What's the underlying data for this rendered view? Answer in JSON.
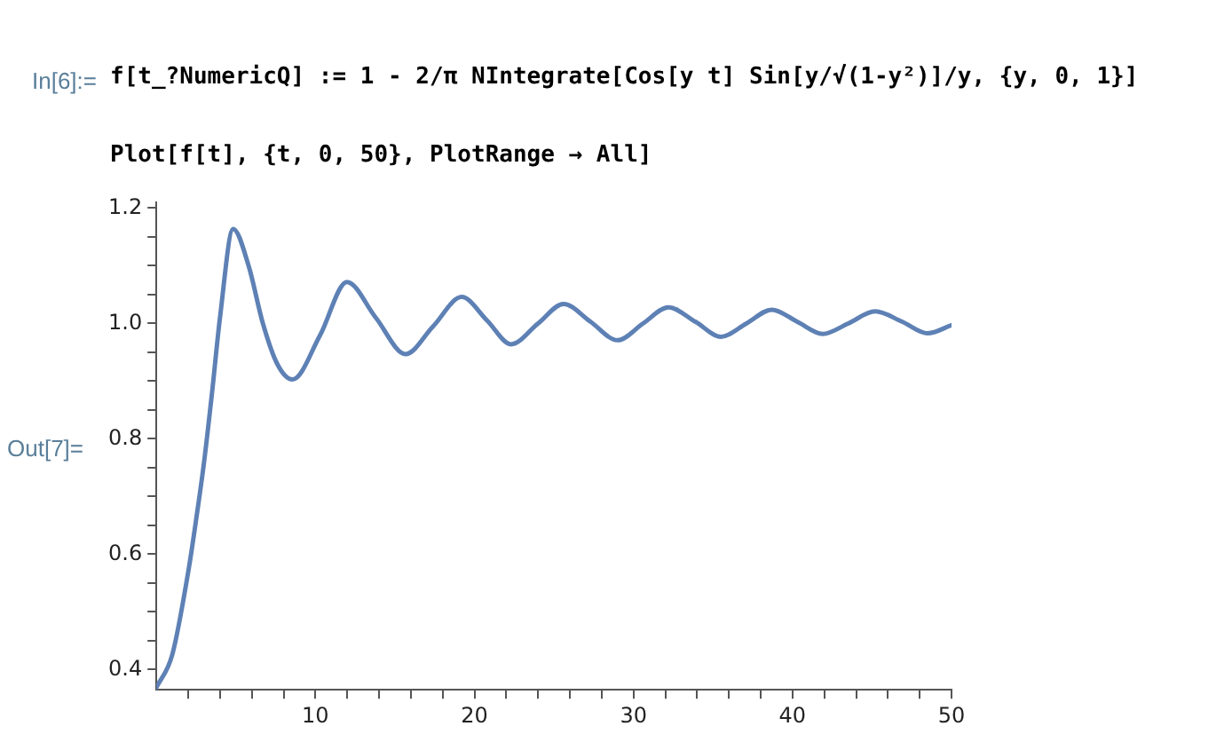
{
  "chart_data": {
    "type": "line",
    "annotations": [
      "In[6]:=",
      "f[t_?NumericQ] := 1 - 2/π NIntegrate[Cos[y t] Sin[y/√(1-y²)]/y, {y, 0, 1}]",
      "Plot[f[t], {t, 0, 50}, PlotRange → All]",
      "Out[7]="
    ],
    "x": [
      0,
      1,
      2,
      2.5,
      3,
      3.5,
      4,
      4.83,
      5.8,
      6.7,
      7.6,
      8.56,
      10.3,
      11.98,
      13.8,
      15.67,
      17.4,
      19.2,
      20.8,
      22.3,
      24,
      25.6,
      27.3,
      29,
      30.6,
      32.2,
      33.9,
      35.5,
      37.1,
      38.7,
      40.3,
      41.9,
      43.5,
      45.2,
      46.9,
      48.5,
      50
    ],
    "series": [
      {
        "color": "#5e81b5",
        "values": [
          0.369,
          0.426,
          0.569,
          0.66,
          0.76,
          0.88,
          1.01,
          1.164,
          1.1,
          1.0,
          0.93,
          0.903,
          0.98,
          1.072,
          1.01,
          0.947,
          0.995,
          1.046,
          1.005,
          0.964,
          1.0,
          1.034,
          1.003,
          0.971,
          1.0,
          1.028,
          1.003,
          0.977,
          1.0,
          1.024,
          1.003,
          0.982,
          1.0,
          1.021,
          1.003,
          0.983,
          0.997
        ]
      }
    ],
    "xlim": [
      0,
      50
    ],
    "ylim": [
      0.365,
      1.21
    ],
    "xticks": [
      {
        "value": 2,
        "label": null
      },
      {
        "value": 4,
        "label": null
      },
      {
        "value": 6,
        "label": null
      },
      {
        "value": 8,
        "label": null
      },
      10,
      {
        "value": 12,
        "label": null
      },
      {
        "value": 14,
        "label": null
      },
      {
        "value": 16,
        "label": null
      },
      {
        "value": 18,
        "label": null
      },
      20,
      {
        "value": 22,
        "label": null
      },
      {
        "value": 24,
        "label": null
      },
      {
        "value": 26,
        "label": null
      },
      {
        "value": 28,
        "label": null
      },
      30,
      {
        "value": 32,
        "label": null
      },
      {
        "value": 34,
        "label": null
      },
      {
        "value": 36,
        "label": null
      },
      {
        "value": 38,
        "label": null
      },
      40,
      {
        "value": 42,
        "label": null
      },
      {
        "value": 44,
        "label": null
      },
      {
        "value": 46,
        "label": null
      },
      {
        "value": 48,
        "label": null
      },
      50
    ],
    "yticks": [
      {
        "value": 0.4,
        "label": "0.4"
      },
      {
        "value": 0.45,
        "label": null
      },
      {
        "value": 0.5,
        "label": null
      },
      {
        "value": 0.55,
        "label": null
      },
      {
        "value": 0.6,
        "label": "0.6"
      },
      {
        "value": 0.65,
        "label": null
      },
      {
        "value": 0.7,
        "label": null
      },
      {
        "value": 0.75,
        "label": null
      },
      {
        "value": 0.8,
        "label": "0.8"
      },
      {
        "value": 0.85,
        "label": null
      },
      {
        "value": 0.9,
        "label": null
      },
      {
        "value": 0.95,
        "label": null
      },
      {
        "value": 1.0,
        "label": "1.0"
      },
      {
        "value": 1.05,
        "label": null
      },
      {
        "value": 1.1,
        "label": null
      },
      {
        "value": 1.15,
        "label": null
      },
      {
        "value": 1.2,
        "label": "1.2"
      }
    ],
    "grid": false,
    "legend": false,
    "marker": "none",
    "line_style": "solid"
  }
}
